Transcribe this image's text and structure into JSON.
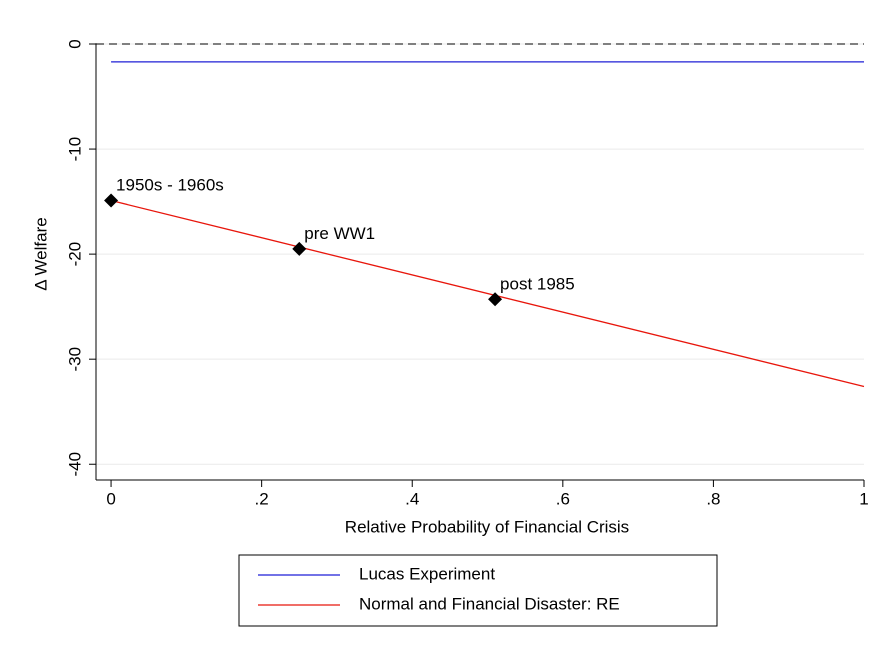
{
  "chart_data": {
    "type": "line",
    "y_label": "Δ Welfare",
    "x_label": "Relative Probability of Financial Crisis",
    "xlim": [
      -0.02,
      1
    ],
    "ylim": [
      -41.5,
      1.5
    ],
    "xticks": [
      0,
      {
        "value": 0.2,
        "label": ".2"
      },
      {
        "value": 0.4,
        "label": ".4"
      },
      {
        "value": 0.6,
        "label": ".6"
      },
      {
        "value": 0.8,
        "label": ".8"
      },
      1
    ],
    "yticks": [
      0,
      -10,
      -20,
      -30,
      -40
    ],
    "grid": true,
    "hline": 0,
    "series": [
      {
        "name": "Lucas Experiment",
        "color": "#1f1fd6",
        "x": [
          0,
          1
        ],
        "values": [
          -1.7,
          -1.7
        ]
      },
      {
        "name": "Normal and Financial Disaster: RE",
        "color": "#e8160c",
        "x": [
          0,
          1
        ],
        "values": [
          -14.9,
          -32.6
        ]
      }
    ],
    "points": {
      "x": [
        0,
        0.25,
        0.51
      ],
      "values": [
        -14.9,
        -19.5,
        -24.3
      ],
      "labels": [
        "1950s - 1960s",
        "pre WW1",
        "post 1985"
      ],
      "color": "#000000"
    },
    "legend": "bottom"
  }
}
